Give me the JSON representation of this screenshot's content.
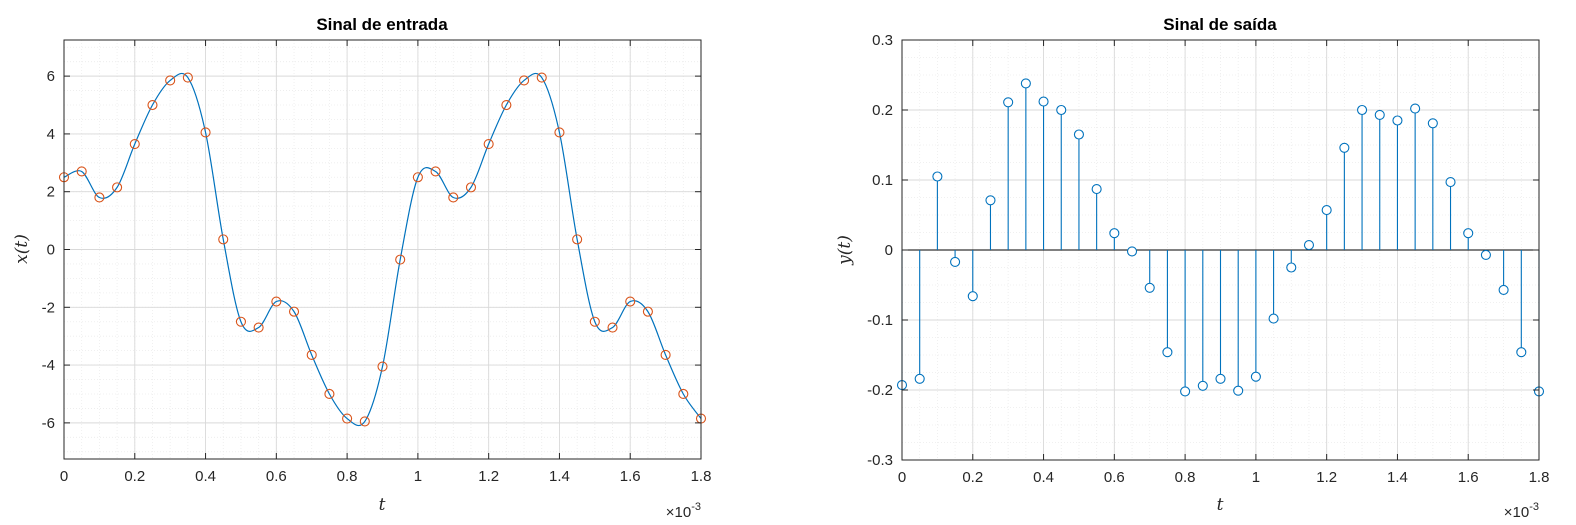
{
  "chart_data": [
    {
      "type": "line",
      "title": "Sinal de entrada",
      "xlabel": "t",
      "ylabel": "x(t)",
      "x_exponent_label": "×10",
      "x_exponent_power": "-3",
      "xlim": [
        0,
        1.8
      ],
      "ylim": [
        -7.25,
        7.25
      ],
      "xticks": [
        0,
        0.2,
        0.4,
        0.6,
        0.8,
        1,
        1.2,
        1.4,
        1.6,
        1.8
      ],
      "xtick_labels": [
        "0",
        "0.2",
        "0.4",
        "0.6",
        "0.8",
        "1",
        "1.2",
        "1.4",
        "1.6",
        "1.8"
      ],
      "yticks": [
        6,
        4,
        2,
        0,
        -2,
        -4,
        -6
      ],
      "ytick_labels": [
        "6",
        "4",
        "2",
        "0",
        "-2",
        "-4",
        "-6"
      ],
      "grid": true,
      "minor_grid": true,
      "colors": {
        "line": "#0072BD",
        "markers": "#D95319"
      },
      "series": [
        {
          "kind": "samples",
          "x": [
            0,
            0.05,
            0.1,
            0.15,
            0.2,
            0.25,
            0.3,
            0.35,
            0.4,
            0.45,
            0.5,
            0.55,
            0.6,
            0.65,
            0.7,
            0.75,
            0.8,
            0.85,
            0.9,
            0.95,
            1.0,
            1.05,
            1.1,
            1.15,
            1.2,
            1.25,
            1.3,
            1.35,
            1.4,
            1.45,
            1.5,
            1.55,
            1.6,
            1.65,
            1.7,
            1.75,
            1.8
          ],
          "y": [
            2.5,
            2.7,
            1.8,
            2.15,
            3.65,
            5.0,
            5.85,
            5.95,
            4.05,
            0.35,
            -2.5,
            -2.7,
            -1.8,
            -2.15,
            -3.65,
            -5.0,
            -5.85,
            -5.95,
            -4.05,
            -0.35,
            2.5,
            2.7,
            1.8,
            2.15,
            3.65,
            5.0,
            5.85,
            5.95,
            4.05,
            0.35,
            -2.5,
            -2.7,
            -1.8,
            -2.15,
            -3.65,
            -5.0,
            -5.85
          ]
        }
      ]
    },
    {
      "type": "stem",
      "title": "Sinal de saída",
      "xlabel": "t",
      "ylabel": "y(t)",
      "x_exponent_label": "×10",
      "x_exponent_power": "-3",
      "xlim": [
        0,
        1.8
      ],
      "ylim": [
        -0.3,
        0.3
      ],
      "xticks": [
        0,
        0.2,
        0.4,
        0.6,
        0.8,
        1,
        1.2,
        1.4,
        1.6,
        1.8
      ],
      "xtick_labels": [
        "0",
        "0.2",
        "0.4",
        "0.6",
        "0.8",
        "1",
        "1.2",
        "1.4",
        "1.6",
        "1.8"
      ],
      "yticks": [
        0.3,
        0.2,
        0.1,
        0,
        -0.1,
        -0.2,
        -0.3
      ],
      "ytick_labels": [
        "0.3",
        "0.2",
        "0.1",
        "0",
        "-0.1",
        "-0.2",
        "-0.3"
      ],
      "grid": true,
      "minor_grid": true,
      "colors": {
        "stem": "#0072BD",
        "baseline": "#000000"
      },
      "series": [
        {
          "x": [
            0,
            0.05,
            0.1,
            0.15,
            0.2,
            0.25,
            0.3,
            0.35,
            0.4,
            0.45,
            0.5,
            0.55,
            0.6,
            0.65,
            0.7,
            0.75,
            0.8,
            0.85,
            0.9,
            0.95,
            1.0,
            1.05,
            1.1,
            1.15,
            1.2,
            1.25,
            1.3,
            1.35,
            1.4,
            1.45,
            1.5,
            1.55,
            1.6,
            1.65,
            1.7,
            1.75,
            1.8
          ],
          "y": [
            -0.193,
            -0.184,
            0.105,
            -0.017,
            -0.066,
            0.071,
            0.211,
            0.238,
            0.212,
            0.2,
            0.165,
            0.087,
            0.024,
            -0.002,
            -0.054,
            -0.146,
            -0.202,
            -0.194,
            -0.184,
            -0.201,
            -0.181,
            -0.098,
            -0.025,
            0.007,
            0.057,
            0.146,
            0.2,
            0.193,
            0.185,
            0.202,
            0.181,
            0.097,
            0.024,
            -0.007,
            -0.057,
            -0.146,
            -0.202
          ]
        }
      ]
    }
  ]
}
